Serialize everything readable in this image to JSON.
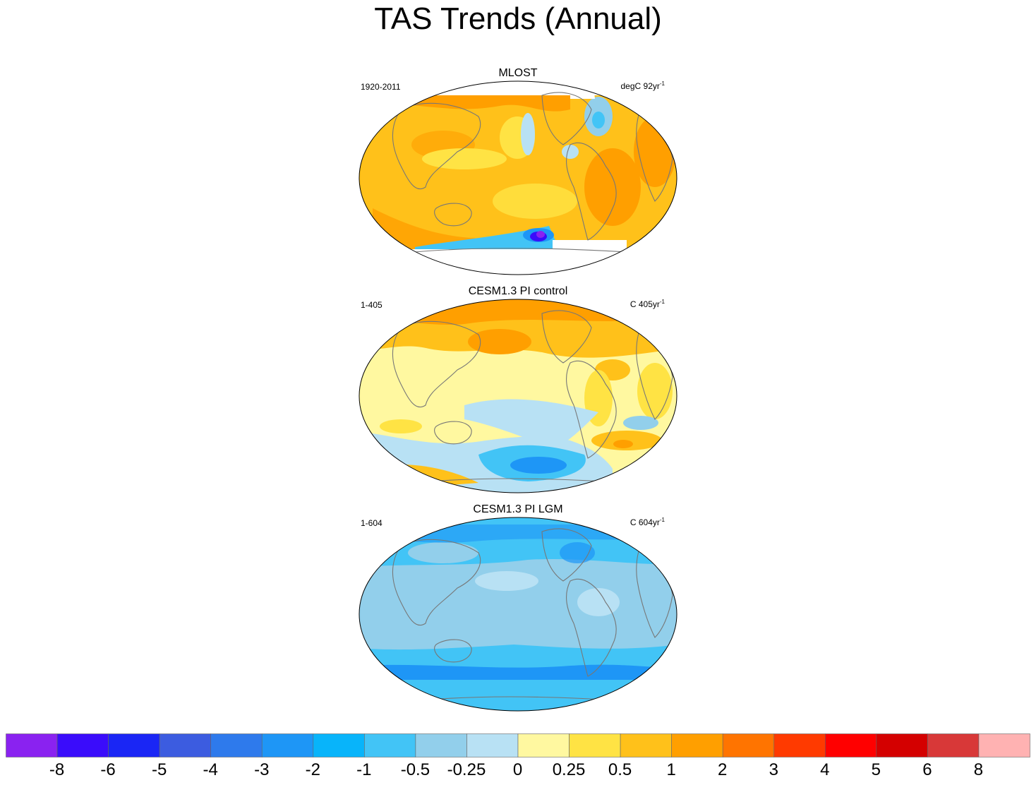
{
  "title": "TAS Trends (Annual)",
  "panels": [
    {
      "title": "MLOST",
      "left_label": "1920-2011",
      "right_label": "degC 92yr",
      "right_sup": "-1",
      "theme": "warm"
    },
    {
      "title": "CESM1.3 PI control",
      "left_label": "1-405",
      "right_label": "C 405yr",
      "right_sup": "-1",
      "theme": "mixed"
    },
    {
      "title": "CESM1.3 PI LGM",
      "left_label": "1-604",
      "right_label": "C 604yr",
      "right_sup": "-1",
      "theme": "cool"
    }
  ],
  "colorbar": {
    "colors": [
      "#8a22f0",
      "#3a0cfb",
      "#1a26f5",
      "#3c5ce0",
      "#2e7aec",
      "#1e96f6",
      "#08b4fa",
      "#42c4f6",
      "#92cfeb",
      "#b8e1f4",
      "#fff8a0",
      "#ffe344",
      "#ffc11a",
      "#ff9f00",
      "#ff7400",
      "#ff3a00",
      "#ff0000",
      "#d40000",
      "#d83838",
      "#ffb2b2"
    ],
    "labels": [
      "-8",
      "-6",
      "-5",
      "-4",
      "-3",
      "-2",
      "-1",
      "-0.5",
      "-0.25",
      "0",
      "0.25",
      "0.5",
      "1",
      "2",
      "3",
      "4",
      "5",
      "6",
      "8"
    ]
  }
}
